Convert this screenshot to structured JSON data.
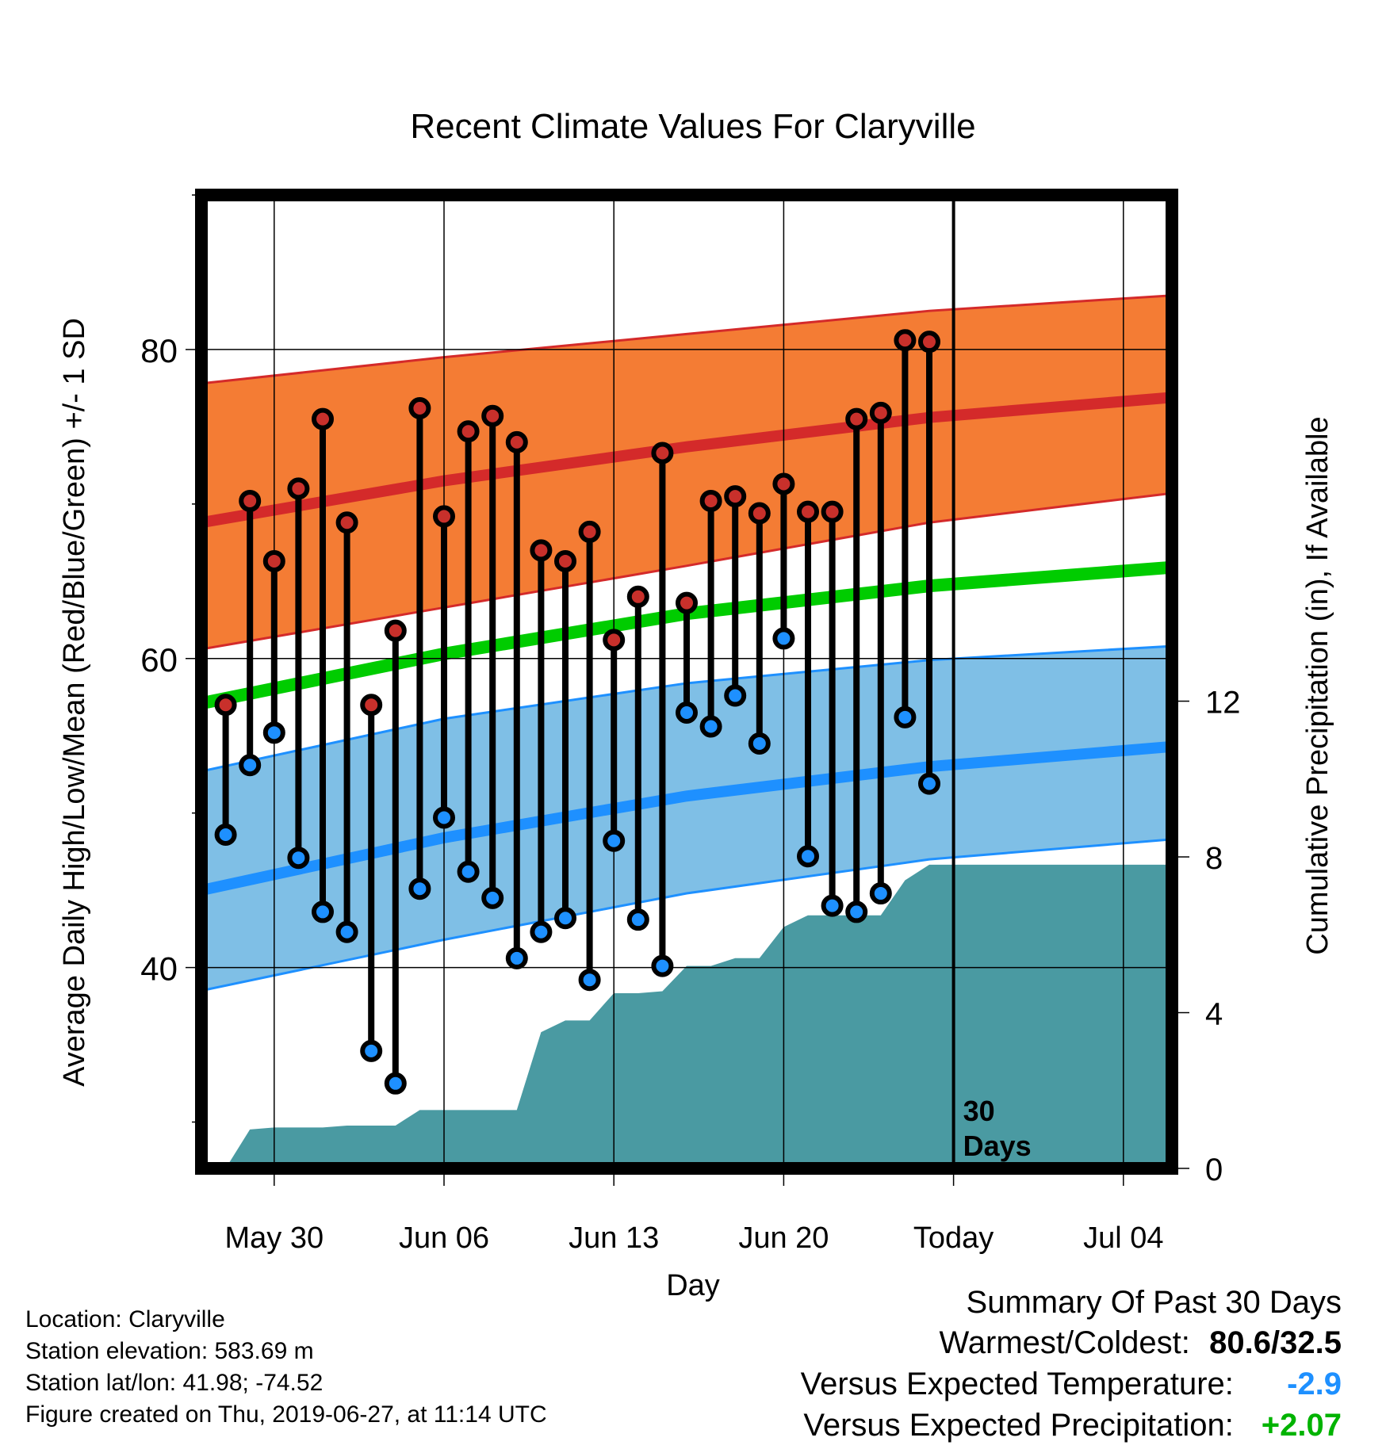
{
  "chart_data": {
    "type": "line",
    "title": "Recent Climate Values For Claryville",
    "xlabel": "Day",
    "ylabel": "Average Daily High/Low/Mean (Red/Blue/Green) +/- 1 SD",
    "y2label": "Cumulative Precipitation (in), If Available",
    "x_tick_labels": [
      "May 30",
      "Jun 06",
      "Jun 13",
      "Jun 20",
      "Today",
      "Jul 04"
    ],
    "x_tick_dates": [
      "2019-05-30",
      "2019-06-06",
      "2019-06-13",
      "2019-06-20",
      "2019-06-27",
      "2019-07-04"
    ],
    "xlim": [
      "2019-05-27",
      "2019-07-06"
    ],
    "y_ticks": [
      40,
      60,
      80
    ],
    "ylim": [
      27,
      90
    ],
    "y2_ticks": [
      0,
      4,
      8,
      12
    ],
    "y2lim": [
      0,
      25
    ],
    "grid": true,
    "today_marker": {
      "date": "2019-06-27",
      "label_line1": "30",
      "label_line2": "Days"
    },
    "dates": [
      "2019-05-28",
      "2019-05-29",
      "2019-05-30",
      "2019-05-31",
      "2019-06-01",
      "2019-06-02",
      "2019-06-03",
      "2019-06-04",
      "2019-06-05",
      "2019-06-06",
      "2019-06-07",
      "2019-06-08",
      "2019-06-09",
      "2019-06-10",
      "2019-06-11",
      "2019-06-12",
      "2019-06-13",
      "2019-06-14",
      "2019-06-15",
      "2019-06-16",
      "2019-06-17",
      "2019-06-18",
      "2019-06-19",
      "2019-06-20",
      "2019-06-21",
      "2019-06-22",
      "2019-06-23",
      "2019-06-24",
      "2019-06-25",
      "2019-06-26"
    ],
    "series": [
      {
        "name": "High",
        "color": "#b22222",
        "values": [
          57.0,
          70.2,
          66.3,
          71.0,
          75.5,
          68.8,
          57.0,
          61.8,
          76.2,
          69.2,
          74.7,
          75.7,
          74.0,
          67.0,
          66.3,
          68.2,
          61.2,
          64.0,
          73.3,
          63.6,
          70.2,
          70.5,
          69.4,
          71.3,
          69.5,
          69.5,
          75.5,
          75.9,
          80.6,
          80.5
        ]
      },
      {
        "name": "Low",
        "color": "#1e90ff",
        "values": [
          48.6,
          53.1,
          55.2,
          47.1,
          43.6,
          42.3,
          34.6,
          32.5,
          45.1,
          49.7,
          46.2,
          44.5,
          40.6,
          42.3,
          43.2,
          39.2,
          48.2,
          43.1,
          40.1,
          56.5,
          55.6,
          57.6,
          54.5,
          61.3,
          47.2,
          44.0,
          43.6,
          44.8,
          56.2,
          51.9
        ]
      },
      {
        "name": "Precipitation",
        "color": "#4a9aa2",
        "values": [
          0.0,
          1.0,
          1.05,
          1.05,
          1.05,
          1.1,
          1.1,
          1.1,
          1.5,
          1.5,
          1.5,
          1.5,
          1.5,
          3.5,
          3.8,
          3.8,
          4.5,
          4.5,
          4.55,
          5.2,
          5.2,
          5.4,
          5.4,
          6.2,
          6.5,
          6.5,
          6.5,
          6.5,
          7.4,
          7.8
        ]
      }
    ],
    "normals": {
      "dates": [
        "2019-05-27",
        "2019-06-06",
        "2019-06-16",
        "2019-06-26",
        "2019-07-06"
      ],
      "high_mean": [
        68.8,
        71.5,
        73.7,
        75.6,
        76.9
      ],
      "high_upper": [
        77.8,
        79.5,
        81.0,
        82.5,
        83.5
      ],
      "high_lower": [
        60.6,
        63.3,
        66.0,
        68.8,
        70.7
      ],
      "mean": [
        57.1,
        60.3,
        62.9,
        64.7,
        65.9
      ],
      "low_mean": [
        45.0,
        48.4,
        51.1,
        53.0,
        54.3
      ],
      "low_upper": [
        52.7,
        56.1,
        58.4,
        59.9,
        60.8
      ],
      "low_lower": [
        38.5,
        41.8,
        44.8,
        47.0,
        48.3
      ],
      "band_colors": {
        "high": "#f47c34",
        "low": "#7fbfe6",
        "mean": "#00cc00"
      }
    }
  },
  "info": {
    "location": "Location: Claryville",
    "elevation": "Station elevation: 583.69 m",
    "latlon": "Station lat/lon: 41.98; -74.52",
    "created": "Figure created on Thu, 2019-06-27, at 11:14 UTC"
  },
  "summary": {
    "heading": "Summary Of Past 30 Days",
    "warm_cold_label": "Warmest/Coldest:",
    "warm_cold_value": "80.6/32.5",
    "temp_label": "Versus Expected Temperature:",
    "temp_value": "-2.9",
    "temp_color": "#1e90ff",
    "precip_label": "Versus Expected Precipitation:",
    "precip_value": "+2.07",
    "precip_color": "#00b300"
  }
}
